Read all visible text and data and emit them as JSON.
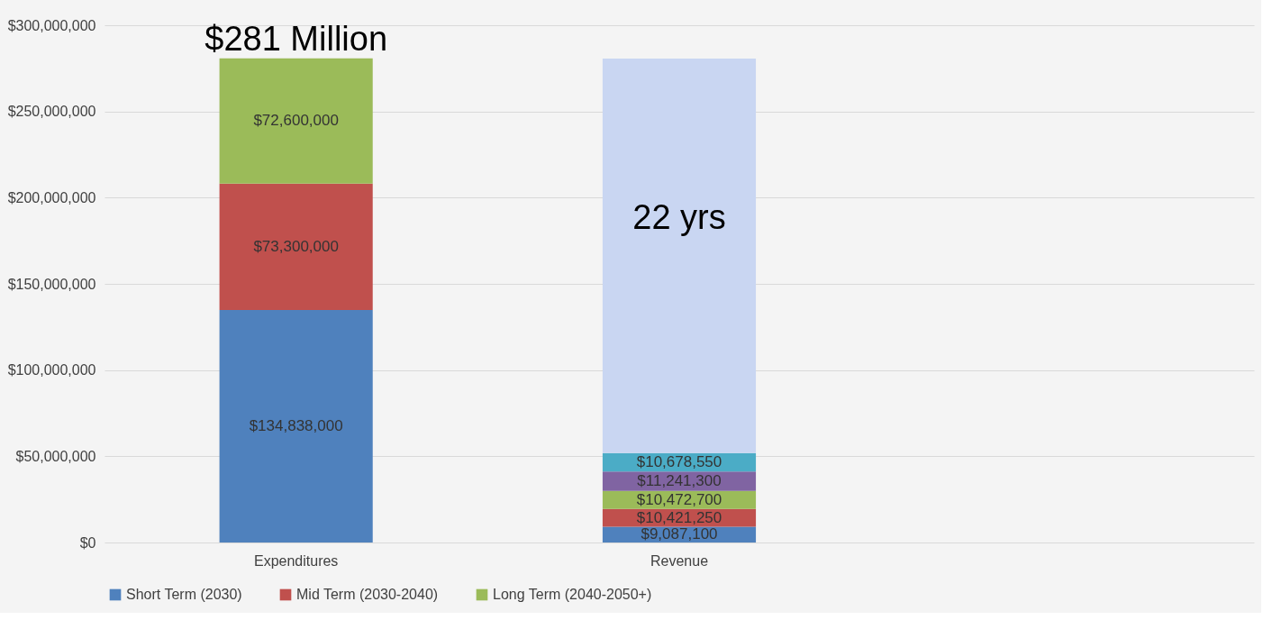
{
  "chart_data": {
    "type": "bar",
    "stacked": true,
    "categories": [
      "Expenditures",
      "Revenue",
      null
    ],
    "series": [
      {
        "name": "Short Term (2030)",
        "color": "#4f81bd",
        "values": [
          134838000,
          9087100,
          null
        ],
        "value_labels": [
          "$134,838,000",
          "$9,087,100",
          null
        ]
      },
      {
        "name": "Mid Term (2030-2040)",
        "color": "#c0504d",
        "values": [
          73300000,
          10421250,
          null
        ],
        "value_labels": [
          "$73,300,000",
          "$10,421,250",
          null
        ]
      },
      {
        "name": "Long Term (2040-2050+)",
        "color": "#9bbb59",
        "values": [
          72600000,
          10472700,
          null
        ],
        "value_labels": [
          "$72,600,000",
          "$10,472,700",
          null
        ]
      },
      {
        "color": "#8064a2",
        "values": [
          null,
          11241300,
          null
        ],
        "value_labels": [
          null,
          "$11,241,300",
          null
        ]
      },
      {
        "color": "#4bacc6",
        "values": [
          null,
          10678550,
          null
        ],
        "value_labels": [
          null,
          "$10,678,550",
          null
        ]
      },
      {
        "color": "#c9d6f2",
        "values": [
          null,
          228800000,
          null
        ]
      }
    ],
    "ylim": [
      0,
      300000000
    ],
    "yticks": [
      {
        "value": 0,
        "label": "$0"
      },
      {
        "value": 50000000,
        "label": "$50,000,000"
      },
      {
        "value": 100000000,
        "label": "$100,000,000"
      },
      {
        "value": 150000000,
        "label": "$150,000,000"
      },
      {
        "value": 200000000,
        "label": "$200,000,000"
      },
      {
        "value": 250000000,
        "label": "$250,000,000"
      },
      {
        "value": 300000000,
        "label": "$300,000,000"
      }
    ],
    "grid": "y",
    "legend": "bottom",
    "annotations": [
      {
        "text": "$281 Million",
        "x": "Expenditures",
        "y": 281000000
      },
      "22 yrs"
    ]
  }
}
